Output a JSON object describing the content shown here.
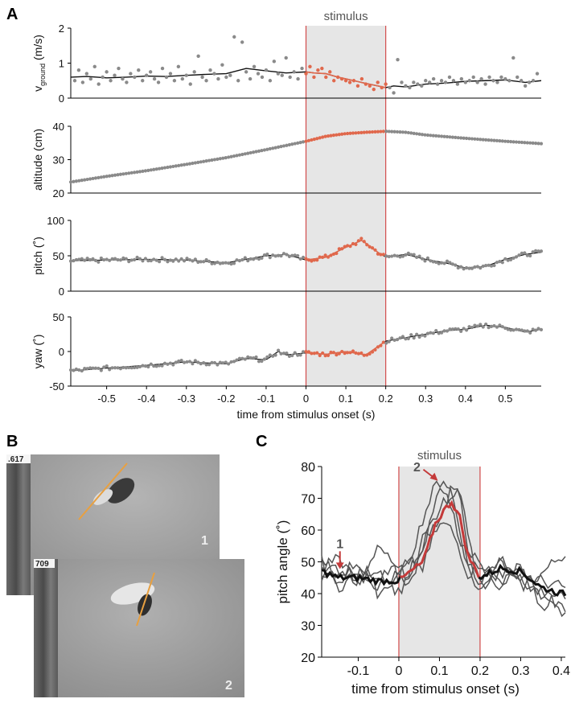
{
  "panels": {
    "a": "A",
    "b": "B",
    "c": "C"
  },
  "colors": {
    "stim_fill": "#e6e6e6",
    "stim_edge": "#d24b4b",
    "highlight": "#e0684c",
    "dots": "#8a8a8a",
    "line": "#111111",
    "c_red": "#c43a3a",
    "c_gray": "#555555",
    "orange": "#e8a040"
  },
  "chart_data": [
    {
      "id": "A-vground",
      "type": "scatter",
      "ylabel": "v",
      "ylabel_sub": "ground",
      "ylabel_unit": " (m/s)",
      "stimulus_label": "stimulus",
      "xlim": [
        -0.59,
        0.59
      ],
      "ylim": [
        0,
        2
      ],
      "yticks": [
        0,
        1,
        2
      ],
      "stimulus": [
        0,
        0.2
      ],
      "points_x": [
        -0.58,
        -0.57,
        -0.56,
        -0.55,
        -0.54,
        -0.53,
        -0.52,
        -0.51,
        -0.5,
        -0.49,
        -0.48,
        -0.47,
        -0.46,
        -0.45,
        -0.44,
        -0.43,
        -0.42,
        -0.41,
        -0.4,
        -0.39,
        -0.38,
        -0.37,
        -0.36,
        -0.35,
        -0.34,
        -0.33,
        -0.32,
        -0.31,
        -0.3,
        -0.29,
        -0.28,
        -0.27,
        -0.26,
        -0.25,
        -0.24,
        -0.23,
        -0.22,
        -0.21,
        -0.2,
        -0.19,
        -0.18,
        -0.17,
        -0.16,
        -0.15,
        -0.14,
        -0.13,
        -0.12,
        -0.11,
        -0.1,
        -0.09,
        -0.08,
        -0.07,
        -0.06,
        -0.05,
        -0.04,
        -0.03,
        -0.02,
        -0.01,
        0.0,
        0.01,
        0.02,
        0.03,
        0.04,
        0.05,
        0.06,
        0.07,
        0.08,
        0.09,
        0.1,
        0.11,
        0.12,
        0.13,
        0.14,
        0.15,
        0.16,
        0.17,
        0.18,
        0.19,
        0.2,
        0.21,
        0.22,
        0.23,
        0.24,
        0.25,
        0.26,
        0.27,
        0.28,
        0.29,
        0.3,
        0.31,
        0.32,
        0.33,
        0.34,
        0.35,
        0.36,
        0.37,
        0.38,
        0.39,
        0.4,
        0.41,
        0.42,
        0.43,
        0.44,
        0.45,
        0.46,
        0.47,
        0.48,
        0.49,
        0.5,
        0.51,
        0.52,
        0.53,
        0.54,
        0.55,
        0.56,
        0.57,
        0.58
      ],
      "points_y": [
        0.5,
        0.8,
        0.45,
        0.7,
        0.55,
        0.9,
        0.4,
        0.6,
        0.75,
        0.5,
        0.65,
        0.85,
        0.55,
        0.45,
        0.7,
        0.6,
        0.8,
        0.5,
        0.65,
        0.75,
        0.55,
        0.45,
        0.85,
        0.6,
        0.7,
        0.5,
        0.9,
        0.55,
        0.65,
        0.4,
        0.75,
        1.2,
        0.6,
        0.5,
        0.8,
        0.7,
        0.55,
        0.95,
        0.6,
        0.65,
        1.75,
        0.5,
        1.6,
        0.75,
        0.55,
        0.9,
        0.7,
        0.6,
        0.8,
        0.5,
        1.05,
        0.7,
        0.65,
        1.15,
        0.6,
        0.75,
        0.55,
        0.85,
        0.7,
        0.9,
        0.6,
        0.8,
        0.85,
        0.6,
        0.75,
        0.5,
        0.6,
        0.55,
        0.5,
        0.45,
        0.5,
        0.35,
        0.55,
        0.4,
        0.35,
        0.25,
        0.45,
        0.3,
        0.4,
        0.3,
        0.15,
        1.1,
        0.45,
        0.35,
        0.3,
        0.45,
        0.4,
        0.35,
        0.5,
        0.45,
        0.55,
        0.4,
        0.5,
        0.45,
        0.6,
        0.5,
        0.4,
        0.55,
        0.45,
        0.5,
        0.6,
        0.45,
        0.55,
        0.4,
        0.6,
        0.5,
        0.45,
        0.6,
        0.55,
        0.5,
        1.15,
        0.6,
        0.5,
        0.35,
        0.45,
        0.5,
        0.7
      ],
      "line_x": [
        -0.59,
        -0.55,
        -0.5,
        -0.45,
        -0.4,
        -0.35,
        -0.3,
        -0.25,
        -0.2,
        -0.15,
        -0.1,
        -0.05,
        0.0,
        0.02,
        0.05,
        0.08,
        0.1,
        0.12,
        0.15,
        0.18,
        0.2,
        0.22,
        0.25,
        0.3,
        0.35,
        0.4,
        0.45,
        0.5,
        0.55,
        0.59
      ],
      "line_y": [
        0.6,
        0.62,
        0.58,
        0.6,
        0.63,
        0.62,
        0.65,
        0.68,
        0.7,
        0.85,
        0.78,
        0.72,
        0.75,
        0.72,
        0.7,
        0.6,
        0.55,
        0.5,
        0.42,
        0.35,
        0.3,
        0.35,
        0.32,
        0.4,
        0.43,
        0.48,
        0.5,
        0.52,
        0.45,
        0.5
      ]
    },
    {
      "id": "A-altitude",
      "type": "scatter",
      "ylabel": "altitude (cm)",
      "xlim": [
        -0.59,
        0.59
      ],
      "ylim": [
        20,
        40
      ],
      "yticks": [
        20,
        30,
        40
      ],
      "stimulus": [
        0,
        0.2
      ],
      "curve_x": [
        -0.59,
        -0.5,
        -0.4,
        -0.3,
        -0.2,
        -0.1,
        0.0,
        0.05,
        0.1,
        0.15,
        0.2,
        0.25,
        0.3,
        0.4,
        0.5,
        0.59
      ],
      "curve_y": [
        23.3,
        25.0,
        26.7,
        28.6,
        30.6,
        33.0,
        35.5,
        37.0,
        37.8,
        38.2,
        38.5,
        38.2,
        37.4,
        36.4,
        35.5,
        34.8
      ]
    },
    {
      "id": "A-pitch",
      "type": "scatter",
      "ylabel": "pitch (˚)",
      "xlim": [
        -0.59,
        0.59
      ],
      "ylim": [
        0,
        100
      ],
      "yticks": [
        0,
        50,
        100
      ],
      "stimulus": [
        0,
        0.2
      ],
      "curve_x": [
        -0.59,
        -0.5,
        -0.4,
        -0.3,
        -0.25,
        -0.2,
        -0.15,
        -0.1,
        -0.05,
        0.0,
        0.05,
        0.1,
        0.14,
        0.18,
        0.2,
        0.25,
        0.3,
        0.35,
        0.4,
        0.45,
        0.5,
        0.55,
        0.59
      ],
      "curve_y": [
        43,
        44,
        45,
        44,
        42,
        40,
        45,
        50,
        52,
        44,
        48,
        62,
        72,
        55,
        48,
        52,
        45,
        40,
        33,
        35,
        45,
        52,
        55
      ]
    },
    {
      "id": "A-yaw",
      "type": "scatter",
      "ylabel": "yaw (˚)",
      "xlabel": "time from stimulus onset (s)",
      "xlim": [
        -0.59,
        0.59
      ],
      "ylim": [
        -50,
        50
      ],
      "yticks": [
        -50,
        0,
        50
      ],
      "xticks": [
        -0.5,
        -0.4,
        -0.3,
        -0.2,
        -0.1,
        0,
        0.1,
        0.2,
        0.3,
        0.4,
        0.5
      ],
      "xtick_labels": [
        "-0.5",
        "-0.4",
        "-0.3",
        "-0.2",
        "-0.1",
        "0",
        "0.1",
        "0.2",
        "0.3",
        "0.4",
        "0.5"
      ],
      "stimulus": [
        0,
        0.2
      ],
      "curve_x": [
        -0.59,
        -0.5,
        -0.4,
        -0.3,
        -0.2,
        -0.15,
        -0.1,
        -0.07,
        -0.05,
        0.0,
        0.05,
        0.1,
        0.15,
        0.2,
        0.25,
        0.3,
        0.35,
        0.4,
        0.45,
        0.5,
        0.55,
        0.59
      ],
      "curve_y": [
        -28,
        -24,
        -20,
        -15,
        -18,
        -10,
        -12,
        0,
        -5,
        -2,
        -4,
        0,
        -5,
        15,
        20,
        25,
        30,
        32,
        38,
        35,
        28,
        32
      ]
    },
    {
      "id": "C-pitch",
      "type": "line",
      "ylabel": "pitch angle (˚)",
      "xlabel": "time from stimulus onset (s)",
      "stimulus_label": "stimulus",
      "xlim": [
        -0.19,
        0.41
      ],
      "ylim": [
        20,
        80
      ],
      "yticks": [
        20,
        30,
        40,
        50,
        60,
        70,
        80
      ],
      "xticks": [
        -0.1,
        0,
        0.1,
        0.2,
        0.3,
        0.4
      ],
      "xtick_labels": [
        "-0.1",
        "0",
        "0.1",
        "0.2",
        "0.3",
        "0.4"
      ],
      "stimulus": [
        0,
        0.2
      ],
      "arrows": [
        {
          "label": "1",
          "x": -0.145,
          "y": 47
        },
        {
          "label": "2",
          "x": 0.1,
          "y": 75
        }
      ],
      "mean_x": [
        -0.19,
        -0.15,
        -0.1,
        -0.05,
        0.0,
        0.03,
        0.06,
        0.09,
        0.11,
        0.13,
        0.15,
        0.17,
        0.2,
        0.25,
        0.3,
        0.35,
        0.4
      ],
      "mean_y": [
        47,
        45,
        45,
        44,
        44,
        47,
        50,
        62,
        66,
        69,
        64,
        52,
        45,
        48,
        47,
        42,
        40
      ],
      "traces_x": [
        -0.19,
        -0.15,
        -0.1,
        -0.05,
        0.0,
        0.03,
        0.06,
        0.09,
        0.11,
        0.13,
        0.15,
        0.17,
        0.2,
        0.25,
        0.3,
        0.35,
        0.4
      ],
      "traces": [
        [
          48,
          52,
          42,
          56,
          45,
          52,
          64,
          74,
          76,
          72,
          60,
          48,
          40,
          52,
          44,
          40,
          36
        ],
        [
          44,
          46,
          50,
          40,
          46,
          42,
          58,
          62,
          66,
          74,
          70,
          55,
          48,
          42,
          50,
          38,
          34
        ],
        [
          50,
          42,
          46,
          48,
          40,
          48,
          52,
          70,
          72,
          66,
          58,
          50,
          44,
          50,
          42,
          46,
          52
        ],
        [
          46,
          48,
          44,
          46,
          48,
          44,
          56,
          64,
          70,
          68,
          74,
          58,
          42,
          46,
          48,
          36,
          40
        ],
        [
          52,
          44,
          48,
          42,
          46,
          50,
          48,
          60,
          62,
          60,
          54,
          46,
          50,
          44,
          46,
          44,
          42
        ]
      ]
    }
  ],
  "photos": {
    "frame1": ".617",
    "frame2": "709",
    "label1": "1",
    "label2": "2"
  }
}
